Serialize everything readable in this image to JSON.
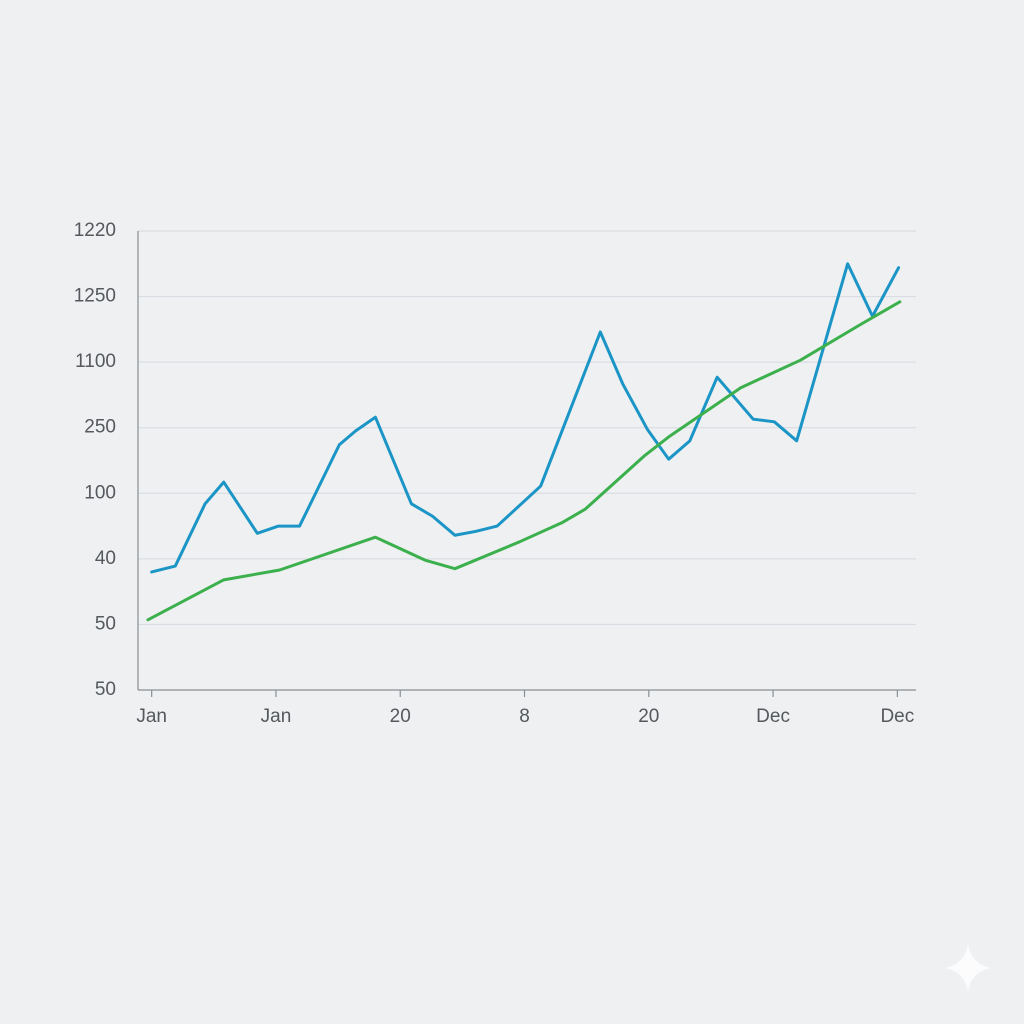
{
  "chart_data": {
    "type": "line",
    "xlim": [
      -0.11,
      6.15
    ],
    "xticks": [
      {
        "value": 0,
        "label": "Jan"
      },
      {
        "value": 1,
        "label": "Jan"
      },
      {
        "value": 2,
        "label": "20"
      },
      {
        "value": 3,
        "label": "8"
      },
      {
        "value": 4,
        "label": "20"
      },
      {
        "value": 5,
        "label": "Dec"
      },
      {
        "value": 6,
        "label": "Dec"
      }
    ],
    "ylim": [
      0,
      7
    ],
    "yticks": [
      {
        "value": 0,
        "label": "50"
      },
      {
        "value": 1,
        "label": "50"
      },
      {
        "value": 2,
        "label": "40"
      },
      {
        "value": 3,
        "label": "100"
      },
      {
        "value": 4,
        "label": "250"
      },
      {
        "value": 5,
        "label": "1100"
      },
      {
        "value": 6,
        "label": "1250"
      },
      {
        "value": 7,
        "label": "1220"
      }
    ],
    "grid": true,
    "series": [
      {
        "color": "#1b95c6",
        "x": [
          0.0,
          0.19,
          0.43,
          0.58,
          0.85,
          1.02,
          1.19,
          1.51,
          1.64,
          1.8,
          2.09,
          2.26,
          2.44,
          2.61,
          2.78,
          3.13,
          3.61,
          3.79,
          3.99,
          4.16,
          4.33,
          4.55,
          4.84,
          5.01,
          5.19,
          5.6,
          5.8,
          6.01
        ],
        "values": [
          1.8,
          1.89,
          2.84,
          3.17,
          2.39,
          2.5,
          2.5,
          3.74,
          3.95,
          4.16,
          2.84,
          2.65,
          2.36,
          2.42,
          2.5,
          3.11,
          5.46,
          4.67,
          3.97,
          3.52,
          3.8,
          4.77,
          4.13,
          4.09,
          3.8,
          6.5,
          5.7,
          6.44
        ]
      },
      {
        "color": "#3cb04c",
        "x": [
          -0.03,
          0.58,
          1.03,
          1.8,
          2.2,
          2.44,
          2.96,
          3.3,
          3.49,
          3.97,
          4.16,
          4.74,
          5.22,
          5.7,
          6.02
        ],
        "values": [
          1.07,
          1.68,
          1.83,
          2.33,
          1.98,
          1.85,
          2.26,
          2.55,
          2.76,
          3.58,
          3.86,
          4.61,
          5.03,
          5.57,
          5.92
        ]
      }
    ]
  }
}
